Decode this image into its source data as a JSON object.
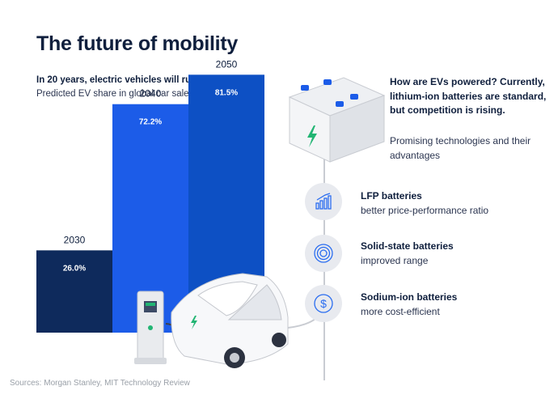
{
  "title": "The future of mobility",
  "subtitle": "In 20 years, electric vehicles will rule our roads.",
  "caption": "Predicted EV share in global car sales",
  "source": "Sources: Morgan Stanley, MIT Technology Review",
  "right": {
    "question": "How are EVs powered? Currently, lithium-ion batteries are standard, but competition is rising.",
    "subtext": "Promising technologies and their advantages",
    "technologies": [
      {
        "name": "LFP batteries",
        "advantage": "better price-performance ratio",
        "icon": "bar-chart-icon"
      },
      {
        "name": "Solid-state batteries",
        "advantage": "improved range",
        "icon": "concentric-circles-icon"
      },
      {
        "name": "Sodium-ion batteries",
        "advantage": "more cost-efficient",
        "icon": "dollar-coin-icon"
      }
    ]
  },
  "chart_data": {
    "type": "bar",
    "categories": [
      "2030",
      "2040",
      "2050"
    ],
    "values": [
      26.0,
      72.2,
      81.5
    ],
    "value_labels": [
      "26.0%",
      "72.2%",
      "81.5%"
    ],
    "ylim": [
      0,
      100
    ],
    "colors": [
      "#0e2a5c",
      "#1c5ce8",
      "#0d50c4"
    ],
    "grid": false,
    "legend": "none"
  }
}
